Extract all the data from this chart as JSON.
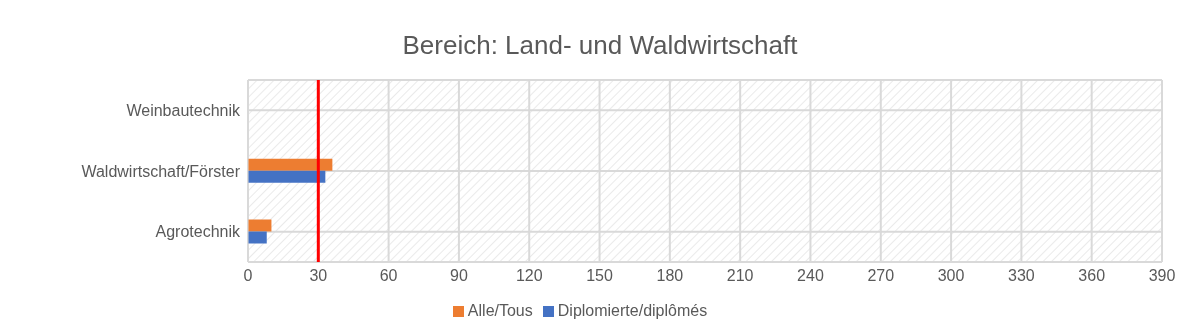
{
  "chart_data": {
    "type": "bar",
    "orientation": "horizontal",
    "title": "Bereich: Land- und Waldwirtschaft",
    "categories": [
      "Weinbautechnik",
      "Waldwirtschaft/Förster",
      "Agrotechnik"
    ],
    "series": [
      {
        "name": "Alle/Tous",
        "color": "#ed7d31",
        "values": [
          0,
          36,
          10
        ]
      },
      {
        "name": "Diplomierte/diplômés",
        "color": "#4472c4",
        "values": [
          0,
          33,
          8
        ]
      }
    ],
    "xlim": [
      0,
      390
    ],
    "xticks": [
      0,
      30,
      60,
      90,
      120,
      150,
      180,
      210,
      240,
      270,
      300,
      330,
      360,
      390
    ],
    "grid": true,
    "legend": "bottom",
    "ref_lines": [
      {
        "axis": "x",
        "value": 30,
        "color": "#ff0000"
      }
    ]
  }
}
